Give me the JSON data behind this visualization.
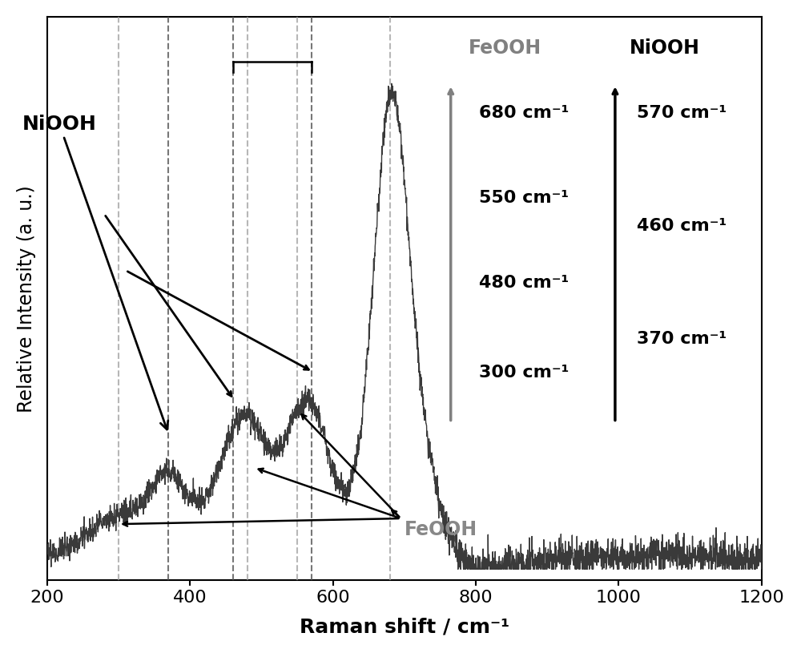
{
  "xlim": [
    200,
    1200
  ],
  "ylim": [
    0,
    1.0
  ],
  "xlabel": "Raman shift / cm⁻¹",
  "ylabel": "Relative Intensity (a. u.)",
  "background_color": "#ffffff",
  "line_color": "#3a3a3a",
  "dashed_line_color_dark": "#555555",
  "dashed_line_color_light": "#999999",
  "dashed_lines_dark": [
    370,
    460,
    570
  ],
  "dashed_lines_light": [
    300,
    480,
    550,
    680
  ],
  "feooh_label_color": "#888888",
  "niooh_label_color": "#000000",
  "tick_fontsize": 16,
  "label_fontsize": 18,
  "annotation_fontsize": 16
}
